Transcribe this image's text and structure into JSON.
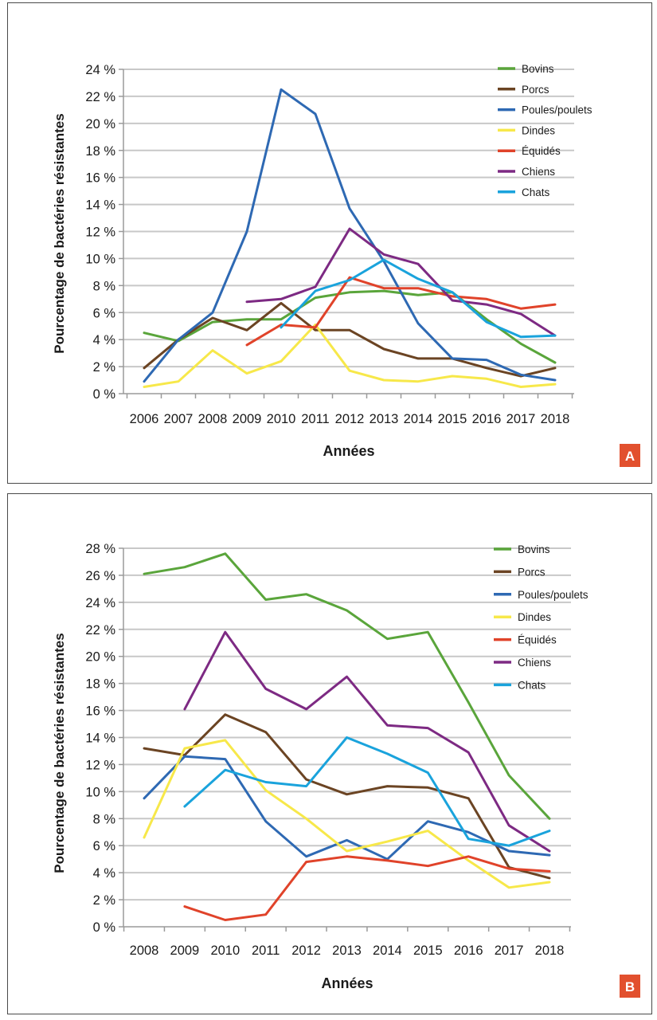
{
  "colors": {
    "Bovins": "#5aa53b",
    "Porcs": "#6b4423",
    "Poules/poulets": "#2e69b3",
    "Dindes": "#f7e84a",
    "Équidés": "#e0432a",
    "Chiens": "#7d2a83",
    "Chats": "#1aa3dc",
    "grid": "#c8c8c8",
    "axis": "#9a9a9a",
    "badge": "#e2502e"
  },
  "chart_data": [
    {
      "type": "line",
      "panel_label": "A",
      "xlabel": "Années",
      "ylabel": "Pourcentage de bactéries résistantes",
      "ylim": [
        0,
        24
      ],
      "yticks": [
        "0 %",
        "2 %",
        "4 %",
        "6 %",
        "8 %",
        "10 %",
        "12 %",
        "14 %",
        "16 %",
        "18 %",
        "20 %",
        "22 %",
        "24 %"
      ],
      "categories": [
        "2006",
        "2007",
        "2008",
        "2009",
        "2010",
        "2011",
        "2012",
        "2013",
        "2014",
        "2015",
        "2016",
        "2017",
        "2018"
      ],
      "grid": true,
      "legend_position": "top-right",
      "series": [
        {
          "name": "Bovins",
          "values": [
            4.5,
            3.9,
            5.3,
            5.5,
            5.5,
            7.1,
            7.5,
            7.6,
            7.3,
            7.5,
            5.5,
            3.7,
            2.3
          ]
        },
        {
          "name": "Porcs",
          "values": [
            1.9,
            4.0,
            5.6,
            4.7,
            6.7,
            4.7,
            4.7,
            3.3,
            2.6,
            2.6,
            1.9,
            1.3,
            1.9
          ]
        },
        {
          "name": "Poules/poulets",
          "values": [
            0.9,
            4.0,
            6.0,
            12.0,
            22.5,
            20.7,
            13.7,
            9.8,
            5.2,
            2.6,
            2.5,
            1.4,
            1.0
          ]
        },
        {
          "name": "Dindes",
          "values": [
            0.5,
            0.9,
            3.2,
            1.5,
            2.4,
            5.1,
            1.7,
            1.0,
            0.9,
            1.3,
            1.1,
            0.5,
            0.7
          ]
        },
        {
          "name": "Équidés",
          "values": [
            null,
            null,
            null,
            3.6,
            5.1,
            4.9,
            8.6,
            7.8,
            7.8,
            7.2,
            7.0,
            6.3,
            6.6
          ]
        },
        {
          "name": "Chiens",
          "values": [
            null,
            null,
            null,
            6.8,
            7.0,
            7.9,
            12.2,
            10.3,
            9.6,
            6.9,
            6.6,
            5.9,
            4.3
          ]
        },
        {
          "name": "Chats",
          "values": [
            null,
            null,
            null,
            null,
            4.9,
            7.6,
            8.4,
            9.9,
            8.5,
            7.5,
            5.3,
            4.2,
            4.3
          ]
        }
      ]
    },
    {
      "type": "line",
      "panel_label": "B",
      "xlabel": "Années",
      "ylabel": "Pourcentage de bactéries résistantes",
      "ylim": [
        0,
        28
      ],
      "yticks": [
        "0 %",
        "2 %",
        "4 %",
        "6 %",
        "8 %",
        "10 %",
        "12 %",
        "14 %",
        "16 %",
        "18 %",
        "20 %",
        "22 %",
        "24 %",
        "26 %",
        "28 %"
      ],
      "categories": [
        "2008",
        "2009",
        "2010",
        "2011",
        "2012",
        "2013",
        "2014",
        "2015",
        "2016",
        "2017",
        "2018"
      ],
      "grid": true,
      "legend_position": "top-right",
      "series": [
        {
          "name": "Bovins",
          "values": [
            26.1,
            26.6,
            27.6,
            24.2,
            24.6,
            23.4,
            21.3,
            21.8,
            16.6,
            11.2,
            8.0
          ]
        },
        {
          "name": "Porcs",
          "values": [
            13.2,
            12.7,
            15.7,
            14.4,
            10.9,
            9.8,
            10.4,
            10.3,
            9.5,
            4.4,
            3.6
          ]
        },
        {
          "name": "Poules/poulets",
          "values": [
            9.5,
            12.6,
            12.4,
            7.8,
            5.2,
            6.4,
            5.0,
            7.8,
            7.0,
            5.6,
            5.3
          ]
        },
        {
          "name": "Dindes",
          "values": [
            6.6,
            13.2,
            13.8,
            10.1,
            8.0,
            5.6,
            6.3,
            7.1,
            4.9,
            2.9,
            3.3
          ]
        },
        {
          "name": "Équidés",
          "values": [
            null,
            1.5,
            0.5,
            0.9,
            4.8,
            5.2,
            4.9,
            4.5,
            5.2,
            4.3,
            4.1
          ]
        },
        {
          "name": "Chiens",
          "values": [
            null,
            16.1,
            21.8,
            17.6,
            16.1,
            18.5,
            14.9,
            14.7,
            12.9,
            7.5,
            5.6
          ]
        },
        {
          "name": "Chats",
          "values": [
            null,
            8.9,
            11.6,
            10.7,
            10.4,
            14.0,
            12.8,
            11.4,
            6.5,
            6.0,
            7.1
          ]
        }
      ]
    }
  ]
}
